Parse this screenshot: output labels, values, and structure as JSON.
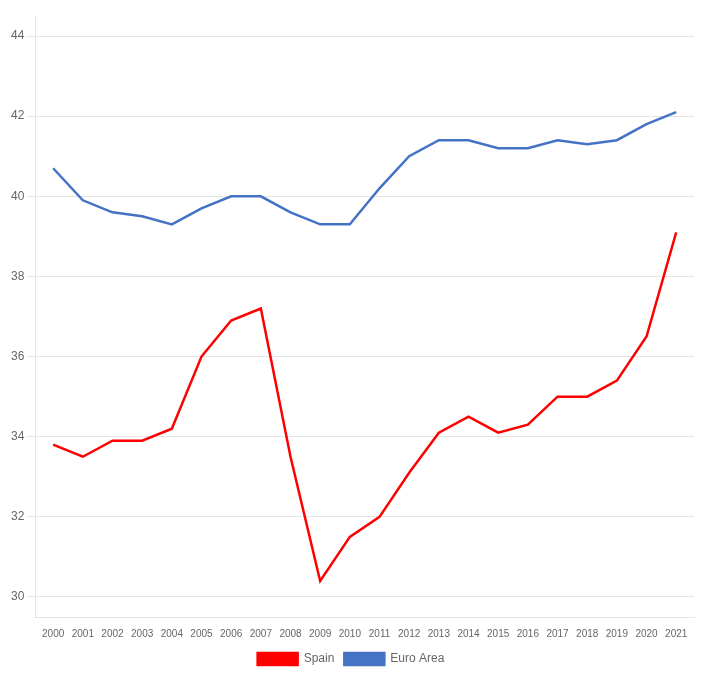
{
  "chart_data": {
    "type": "line",
    "x": [
      2000,
      2001,
      2002,
      2003,
      2004,
      2005,
      2006,
      2007,
      2008,
      2009,
      2010,
      2011,
      2012,
      2013,
      2014,
      2015,
      2016,
      2017,
      2018,
      2019,
      2020,
      2021
    ],
    "series": [
      {
        "name": "Spain",
        "color": "#FF0000",
        "values": [
          33.8,
          33.5,
          33.9,
          33.9,
          34.2,
          36.0,
          36.9,
          37.2,
          33.5,
          30.4,
          31.5,
          32.0,
          33.1,
          34.1,
          34.5,
          34.1,
          34.3,
          35.0,
          35.0,
          35.4,
          36.5,
          39.1
        ]
      },
      {
        "name": "Euro Area",
        "color": "#4472C4",
        "values": [
          40.7,
          39.9,
          39.6,
          39.5,
          39.3,
          39.7,
          40.0,
          40.0,
          39.6,
          39.3,
          39.3,
          40.2,
          41.0,
          41.4,
          41.4,
          41.2,
          41.2,
          41.4,
          41.3,
          41.4,
          41.8,
          42.1
        ]
      }
    ],
    "xlim": [
      1999.4,
      2021.6
    ],
    "xticks": [
      2000,
      2001,
      2002,
      2003,
      2004,
      2005,
      2006,
      2007,
      2008,
      2009,
      2010,
      2011,
      2012,
      2013,
      2014,
      2015,
      2016,
      2017,
      2018,
      2019,
      2020,
      2021
    ],
    "ylim": [
      29.5,
      44.5
    ],
    "yticks": [
      30,
      32,
      34,
      36,
      38,
      40,
      42,
      44
    ],
    "grid": "y",
    "legend": "bottom"
  }
}
